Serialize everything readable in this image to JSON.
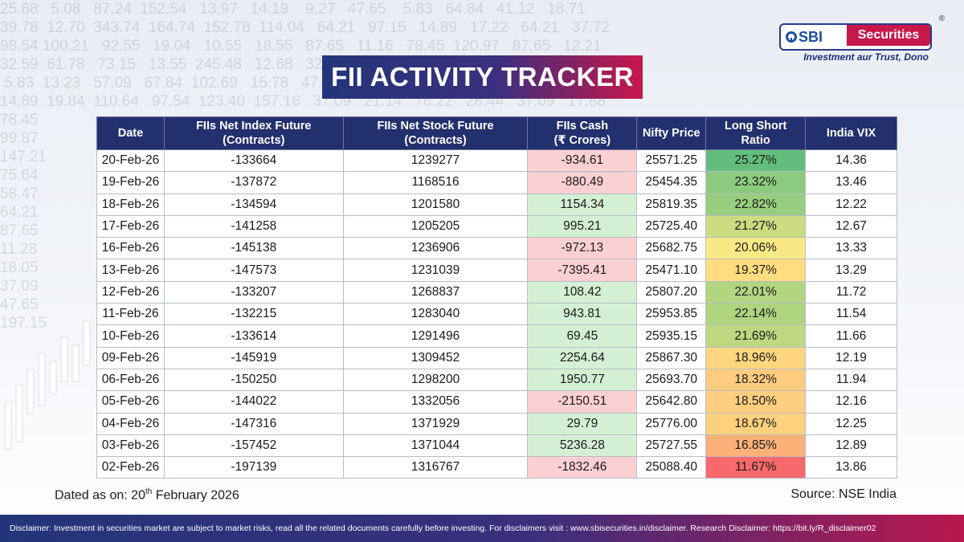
{
  "brand": {
    "logo_sbi": "SBI",
    "logo_securities": "Securities",
    "logo_registered": "®",
    "tagline": "Investment aur Trust, Dono"
  },
  "title": "FII ACTIVITY TRACKER",
  "background_numbers": "25.68   5.08   87.24  152.54   13.97   14.19    9.27   47.65    5.83   64.84   41.12   18.71\n39.78  12.70  343.74  164.74  152.78  114.04   64.21   97.15   14.89   17.22   64.21   37.72\n98.54 100.21   92.55   19.04   10.55   18.55   87.65   11.16   78.45  120.97   87.65   12.21\n32.59  61.78   73.15   13.55  245.48   12.68   32.59   28.74   98.54   50.22   11.28   48.11\n 5.83  13.23   57.09   67.84  102.69   15.78   47.65   39.78   12.70   18.05  356.45   57.09\n14.89  19.84  110.64   97.54  123.40  157.16   37.09   21.14   76.22   28.44   37.09   17.88\n78.45\n99.87\n147.21\n75.64\n58.47\n64.21\n87.65\n11.28\n18.05\n37.09\n47.65\n197.15",
  "table": {
    "headers": {
      "date": "Date",
      "index_future": "FIIs Net Index Future",
      "index_future_sub": "(Contracts)",
      "stock_future": "FIIs Net Stock Future",
      "stock_future_sub": "(Contracts)",
      "cash": "FIIs Cash",
      "cash_sub": "(₹ Crores)",
      "nifty": "Nifty Price",
      "ls_ratio": "Long Short Ratio",
      "vix": "India VIX"
    },
    "rows": [
      {
        "date": "20-Feb-26",
        "index_future": "-133664",
        "stock_future": "1239277",
        "cash": "-934.61",
        "cash_sign": "neg",
        "nifty": "25571.25",
        "ls_ratio": "25.27%",
        "ls_color": "#63be7b",
        "vix": "14.36"
      },
      {
        "date": "19-Feb-26",
        "index_future": "-137872",
        "stock_future": "1168516",
        "cash": "-880.49",
        "cash_sign": "neg",
        "nifty": "25454.35",
        "ls_ratio": "23.32%",
        "ls_color": "#8ccb7e",
        "vix": "13.46"
      },
      {
        "date": "18-Feb-26",
        "index_future": "-134594",
        "stock_future": "1201580",
        "cash": "1154.34",
        "cash_sign": "pos",
        "nifty": "25819.35",
        "ls_ratio": "22.82%",
        "ls_color": "#97ce7f",
        "vix": "12.22"
      },
      {
        "date": "17-Feb-26",
        "index_future": "-141258",
        "stock_future": "1205205",
        "cash": "995.21",
        "cash_sign": "pos",
        "nifty": "25725.40",
        "ls_ratio": "21.27%",
        "ls_color": "#cbdc81",
        "vix": "12.67"
      },
      {
        "date": "16-Feb-26",
        "index_future": "-145138",
        "stock_future": "1236906",
        "cash": "-972.13",
        "cash_sign": "neg",
        "nifty": "25682.75",
        "ls_ratio": "20.06%",
        "ls_color": "#f8e984",
        "vix": "13.33"
      },
      {
        "date": "13-Feb-26",
        "index_future": "-147573",
        "stock_future": "1231039",
        "cash": "-7395.41",
        "cash_sign": "neg",
        "nifty": "25471.10",
        "ls_ratio": "19.37%",
        "ls_color": "#fedd81",
        "vix": "13.29"
      },
      {
        "date": "12-Feb-26",
        "index_future": "-133207",
        "stock_future": "1268837",
        "cash": "108.42",
        "cash_sign": "pos",
        "nifty": "25807.20",
        "ls_ratio": "22.01%",
        "ls_color": "#b2d580",
        "vix": "11.72"
      },
      {
        "date": "11-Feb-26",
        "index_future": "-132215",
        "stock_future": "1283040",
        "cash": "943.81",
        "cash_sign": "pos",
        "nifty": "25953.85",
        "ls_ratio": "22.14%",
        "ls_color": "#aed47f",
        "vix": "11.54"
      },
      {
        "date": "10-Feb-26",
        "index_future": "-133614",
        "stock_future": "1291496",
        "cash": "69.45",
        "cash_sign": "pos",
        "nifty": "25935.15",
        "ls_ratio": "21.69%",
        "ls_color": "#bdd881",
        "vix": "11.66"
      },
      {
        "date": "09-Feb-26",
        "index_future": "-145919",
        "stock_future": "1309452",
        "cash": "2254.64",
        "cash_sign": "pos",
        "nifty": "25867.30",
        "ls_ratio": "18.96%",
        "ls_color": "#fed680",
        "vix": "12.19"
      },
      {
        "date": "06-Feb-26",
        "index_future": "-150250",
        "stock_future": "1298200",
        "cash": "1950.77",
        "cash_sign": "pos",
        "nifty": "25693.70",
        "ls_ratio": "18.32%",
        "ls_color": "#fdcc7e",
        "vix": "11.94"
      },
      {
        "date": "05-Feb-26",
        "index_future": "-144022",
        "stock_future": "1332056",
        "cash": "-2150.51",
        "cash_sign": "neg",
        "nifty": "25642.80",
        "ls_ratio": "18.50%",
        "ls_color": "#fdcf7f",
        "vix": "12.16"
      },
      {
        "date": "04-Feb-26",
        "index_future": "-147316",
        "stock_future": "1371929",
        "cash": "29.79",
        "cash_sign": "pos",
        "nifty": "25776.00",
        "ls_ratio": "18.67%",
        "ls_color": "#fed17f",
        "vix": "12.25"
      },
      {
        "date": "03-Feb-26",
        "index_future": "-157452",
        "stock_future": "1371044",
        "cash": "5236.28",
        "cash_sign": "pos",
        "nifty": "25727.55",
        "ls_ratio": "16.85%",
        "ls_color": "#fbb178",
        "vix": "12.89"
      },
      {
        "date": "02-Feb-26",
        "index_future": "-197139",
        "stock_future": "1316767",
        "cash": "-1832.46",
        "cash_sign": "neg",
        "nifty": "25088.40",
        "ls_ratio": "11.67%",
        "ls_color": "#f8696b",
        "vix": "13.86"
      }
    ]
  },
  "colors": {
    "header_bg": "#23306e",
    "cash_negative_bg": "#fbd0d2",
    "cash_positive_bg": "#d3f0d4"
  },
  "dated": {
    "prefix": "Dated as on: 20",
    "sup": "th",
    "suffix": " February 2026"
  },
  "source": "Source: NSE India",
  "disclaimer": "Disclaimer: Investment in securities market are subject to market risks, read all the related documents carefully before investing. For disclaimers visit : www.sbisecurities.in/disclaimer. Research Disclaimer: https://bit.ly/R_disclaimer02"
}
